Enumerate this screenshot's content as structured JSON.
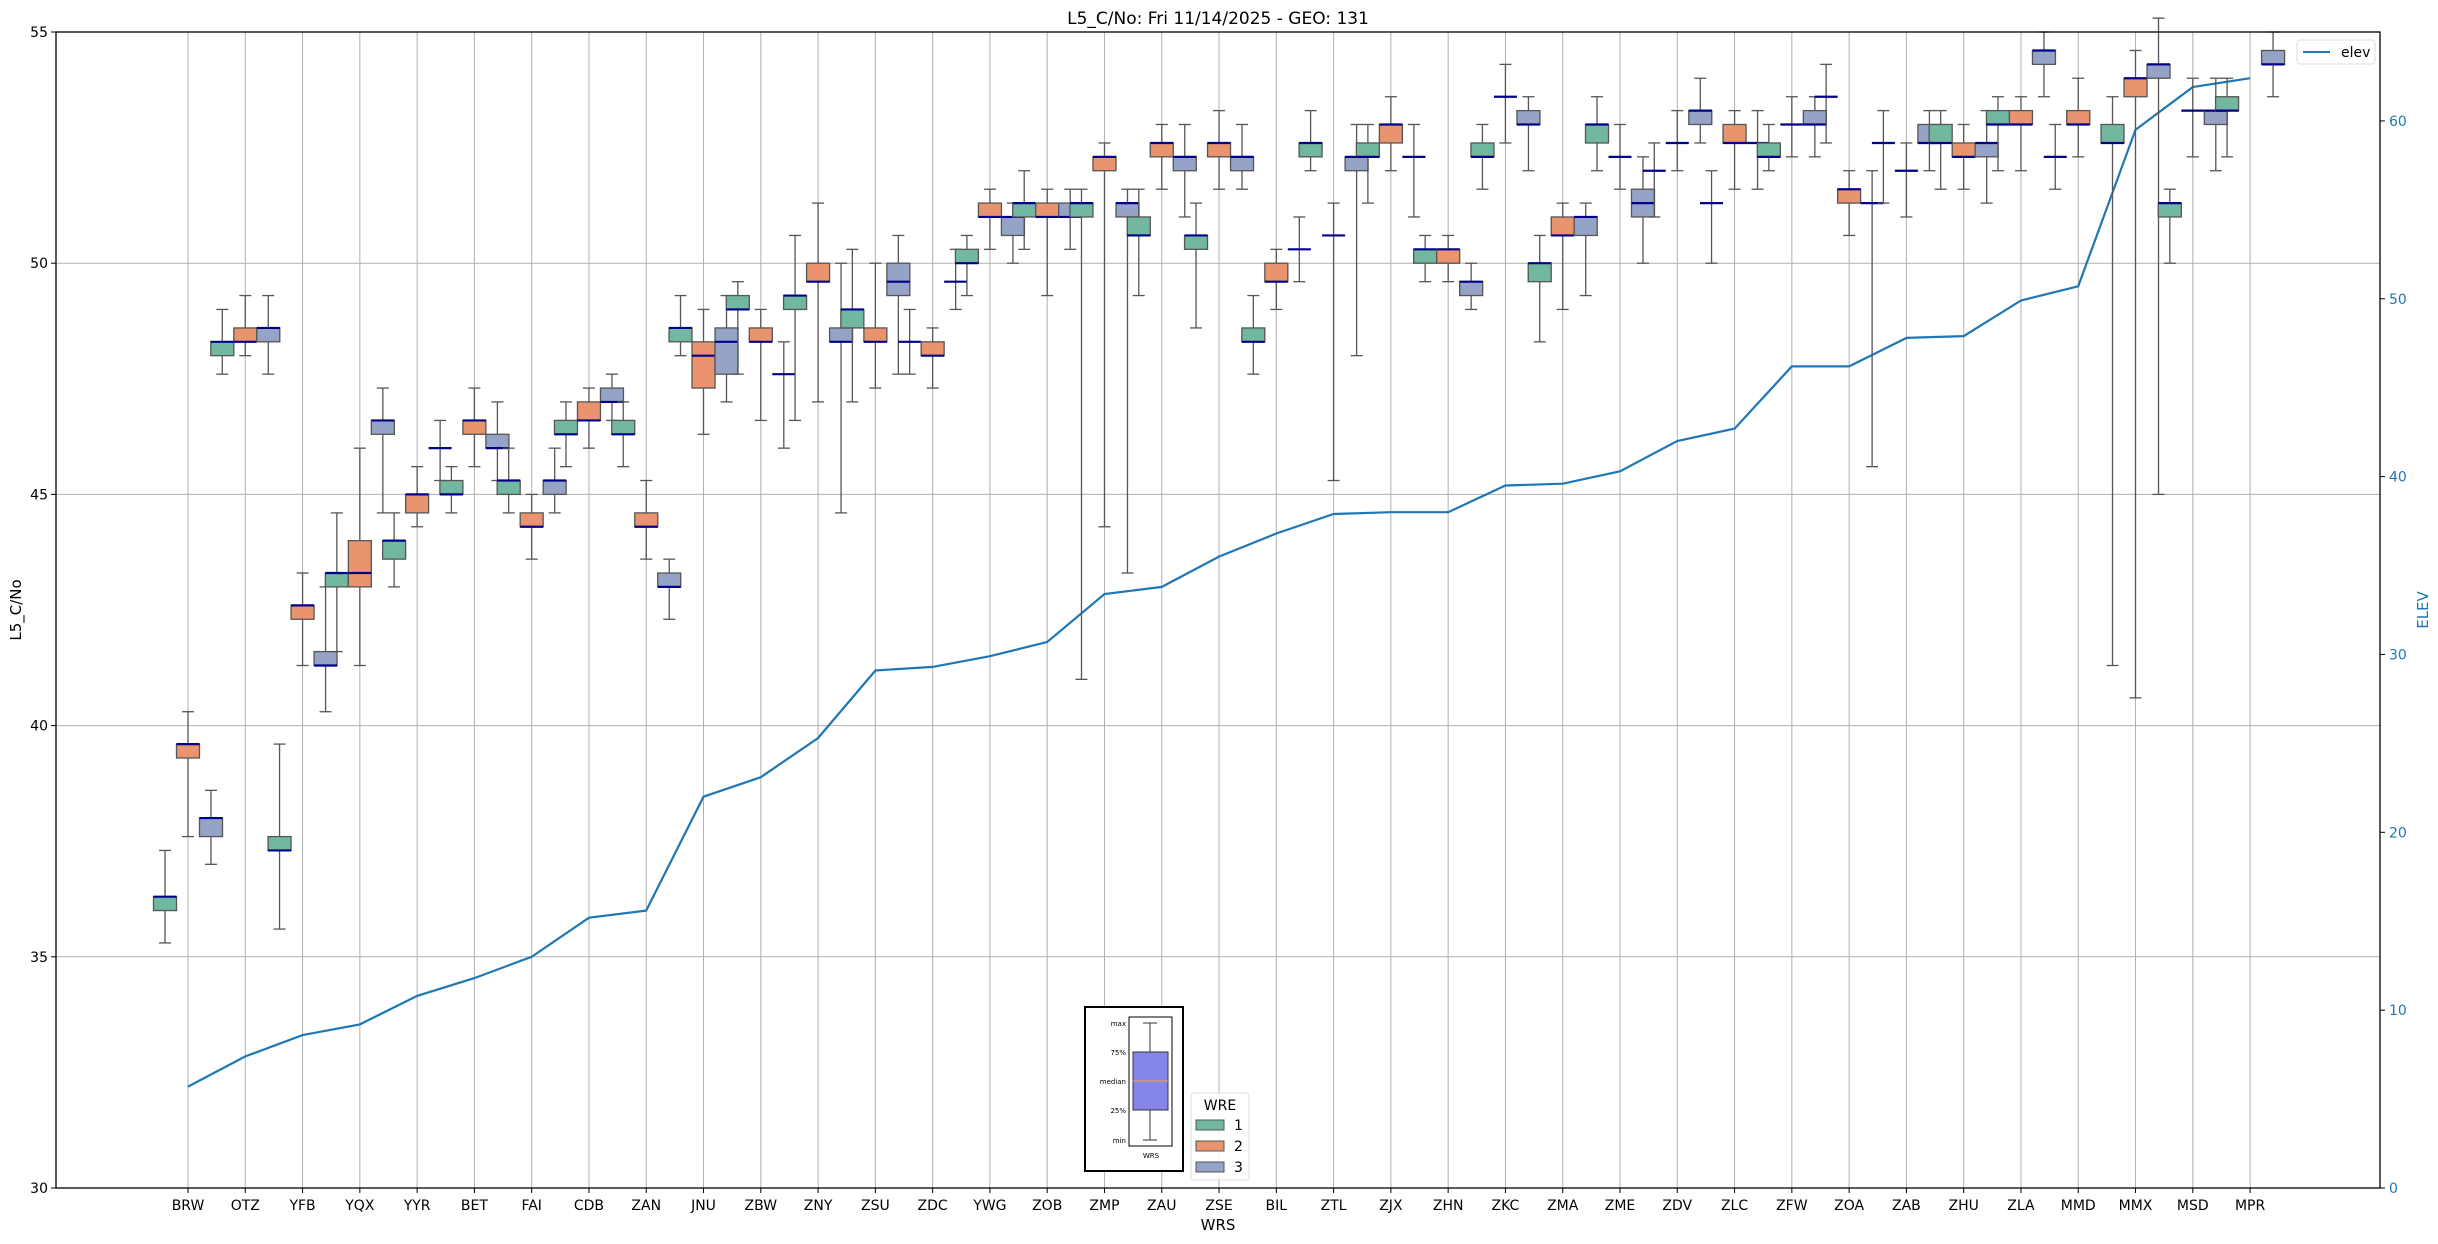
{
  "chart_data": {
    "type": "box",
    "title": "L5_C/No: Fri 11/14/2025 - GEO: 131",
    "xlabel": "WRS",
    "ylabel": "L5_C/No",
    "y2label": "ELEV",
    "ylim": [
      30,
      55
    ],
    "y2lim": [
      0,
      65
    ],
    "yticks": [
      30,
      35,
      40,
      45,
      50,
      55
    ],
    "y2ticks": [
      0,
      10,
      20,
      30,
      40,
      50,
      60
    ],
    "grid": true,
    "group_legend": {
      "title": "WRE",
      "entries": [
        "1",
        "2",
        "3"
      ],
      "placement": "bottom-center"
    },
    "line_legend": {
      "entries": [
        "elev"
      ],
      "placement": "top-right"
    },
    "colors": {
      "g1": "#72b8a0",
      "g2": "#e9946f",
      "g3": "#95a3c6",
      "median": "#00008b",
      "whisker": "#555555",
      "elev": "#1f77b4",
      "grid": "#b0b0b0"
    },
    "box_format": [
      "min",
      "q1",
      "median",
      "q3",
      "max"
    ],
    "stations": [
      {
        "name": "BRW",
        "elev": 5.7,
        "groups": [
          [
            35.3,
            36.0,
            36.3,
            36.3,
            37.3
          ],
          [
            37.6,
            39.3,
            39.6,
            39.6,
            40.3
          ],
          [
            37.0,
            37.6,
            38.0,
            38.0,
            38.6
          ]
        ]
      },
      {
        "name": "OTZ",
        "elev": 7.4,
        "groups": [
          [
            47.6,
            48.0,
            48.3,
            48.3,
            49.0
          ],
          [
            48.0,
            48.3,
            48.3,
            48.6,
            49.3
          ],
          [
            47.6,
            48.3,
            48.6,
            48.6,
            49.3
          ]
        ]
      },
      {
        "name": "YFB",
        "elev": 8.6,
        "groups": [
          [
            35.6,
            37.3,
            37.3,
            37.6,
            39.6
          ],
          [
            41.3,
            42.3,
            42.6,
            42.6,
            43.3
          ],
          [
            40.3,
            41.3,
            41.3,
            41.6,
            43.0
          ]
        ]
      },
      {
        "name": "YQX",
        "elev": 9.2,
        "groups": [
          [
            41.6,
            43.0,
            43.3,
            43.3,
            44.6
          ],
          [
            41.3,
            43.0,
            43.3,
            44.0,
            46.0
          ],
          [
            44.6,
            46.3,
            46.6,
            46.6,
            47.3
          ]
        ]
      },
      {
        "name": "YYR",
        "elev": 10.8,
        "groups": [
          [
            43.0,
            43.6,
            44.0,
            44.0,
            44.6
          ],
          [
            44.3,
            44.6,
            45.0,
            45.0,
            45.6
          ],
          [
            45.3,
            46.0,
            46.0,
            46.0,
            46.6
          ]
        ]
      },
      {
        "name": "BET",
        "elev": 11.8,
        "groups": [
          [
            44.6,
            45.0,
            45.0,
            45.3,
            45.6
          ],
          [
            45.6,
            46.3,
            46.6,
            46.6,
            47.3
          ],
          [
            45.3,
            46.0,
            46.0,
            46.3,
            47.0
          ]
        ]
      },
      {
        "name": "FAI",
        "elev": 13.0,
        "groups": [
          [
            44.6,
            45.0,
            45.3,
            45.3,
            46.0
          ],
          [
            43.6,
            44.3,
            44.3,
            44.6,
            45.0
          ],
          [
            44.6,
            45.0,
            45.3,
            45.3,
            46.0
          ]
        ]
      },
      {
        "name": "CDB",
        "elev": 15.2,
        "groups": [
          [
            45.6,
            46.3,
            46.3,
            46.6,
            47.0
          ],
          [
            46.0,
            46.6,
            46.6,
            47.0,
            47.3
          ],
          [
            46.6,
            47.0,
            47.0,
            47.3,
            47.6
          ]
        ]
      },
      {
        "name": "ZAN",
        "elev": 15.6,
        "groups": [
          [
            45.6,
            46.3,
            46.3,
            46.6,
            47.0
          ],
          [
            43.6,
            44.3,
            44.3,
            44.6,
            45.3
          ],
          [
            42.3,
            43.0,
            43.0,
            43.3,
            43.6
          ]
        ]
      },
      {
        "name": "JNU",
        "elev": 22.0,
        "groups": [
          [
            48.0,
            48.3,
            48.6,
            48.6,
            49.3
          ],
          [
            46.3,
            47.3,
            48.0,
            48.3,
            49.0
          ],
          [
            47.0,
            47.6,
            48.3,
            48.6,
            49.3
          ]
        ]
      },
      {
        "name": "ZBW",
        "elev": 23.1,
        "groups": [
          [
            47.6,
            49.0,
            49.0,
            49.3,
            49.6
          ],
          [
            46.6,
            48.3,
            48.3,
            48.6,
            49.0
          ],
          [
            46.0,
            47.6,
            47.6,
            47.6,
            48.3
          ]
        ]
      },
      {
        "name": "ZNY",
        "elev": 25.3,
        "groups": [
          [
            46.6,
            49.0,
            49.3,
            49.3,
            50.6
          ],
          [
            47.0,
            49.6,
            49.6,
            50.0,
            51.3
          ],
          [
            44.6,
            48.3,
            48.3,
            48.6,
            50.0
          ]
        ]
      },
      {
        "name": "ZSU",
        "elev": 29.1,
        "groups": [
          [
            47.0,
            48.6,
            49.0,
            49.0,
            50.3
          ],
          [
            47.3,
            48.3,
            48.3,
            48.6,
            50.0
          ],
          [
            47.6,
            49.3,
            49.6,
            50.0,
            50.6
          ]
        ]
      },
      {
        "name": "ZDC",
        "elev": 29.3,
        "groups": [
          [
            47.6,
            48.3,
            48.3,
            48.3,
            49.0
          ],
          [
            47.3,
            48.0,
            48.0,
            48.3,
            48.6
          ],
          [
            49.0,
            49.6,
            49.6,
            49.6,
            50.3
          ]
        ]
      },
      {
        "name": "YWG",
        "elev": 29.9,
        "groups": [
          [
            49.3,
            50.0,
            50.0,
            50.3,
            50.6
          ],
          [
            50.3,
            51.0,
            51.0,
            51.3,
            51.6
          ],
          [
            50.0,
            50.6,
            51.0,
            51.0,
            51.3
          ]
        ]
      },
      {
        "name": "ZOB",
        "elev": 30.7,
        "groups": [
          [
            50.3,
            51.0,
            51.3,
            51.3,
            52.0
          ],
          [
            49.3,
            51.0,
            51.0,
            51.3,
            51.6
          ],
          [
            50.3,
            51.0,
            51.0,
            51.3,
            51.6
          ]
        ]
      },
      {
        "name": "ZMP",
        "elev": 33.4,
        "groups": [
          [
            41.0,
            51.0,
            51.3,
            51.3,
            51.6
          ],
          [
            44.3,
            52.0,
            52.3,
            52.3,
            52.6
          ],
          [
            43.3,
            51.0,
            51.3,
            51.3,
            51.6
          ]
        ]
      },
      {
        "name": "ZAU",
        "elev": 33.8,
        "groups": [
          [
            49.3,
            50.6,
            50.6,
            51.0,
            51.6
          ],
          [
            51.6,
            52.3,
            52.6,
            52.6,
            53.0
          ],
          [
            51.0,
            52.0,
            52.3,
            52.3,
            53.0
          ]
        ]
      },
      {
        "name": "ZSE",
        "elev": 35.5,
        "groups": [
          [
            48.6,
            50.3,
            50.6,
            50.6,
            51.3
          ],
          [
            51.6,
            52.3,
            52.6,
            52.6,
            53.3
          ],
          [
            51.6,
            52.0,
            52.3,
            52.3,
            53.0
          ]
        ]
      },
      {
        "name": "BIL",
        "elev": 36.8,
        "groups": [
          [
            47.6,
            48.3,
            48.3,
            48.6,
            49.3
          ],
          [
            49.0,
            49.6,
            49.6,
            50.0,
            50.3
          ],
          [
            49.6,
            50.3,
            50.3,
            50.3,
            51.0
          ]
        ]
      },
      {
        "name": "ZTL",
        "elev": 37.9,
        "groups": [
          [
            52.0,
            52.3,
            52.6,
            52.6,
            53.3
          ],
          [
            45.3,
            50.6,
            50.6,
            50.6,
            51.3
          ],
          [
            48.0,
            52.0,
            52.3,
            52.3,
            53.0
          ]
        ]
      },
      {
        "name": "ZJX",
        "elev": 38.0,
        "groups": [
          [
            51.3,
            52.3,
            52.3,
            52.6,
            53.0
          ],
          [
            52.0,
            52.6,
            53.0,
            53.0,
            53.6
          ],
          [
            51.0,
            52.3,
            52.3,
            52.3,
            53.0
          ]
        ]
      },
      {
        "name": "ZHN",
        "elev": 38.0,
        "groups": [
          [
            49.6,
            50.0,
            50.3,
            50.3,
            50.6
          ],
          [
            49.6,
            50.0,
            50.3,
            50.3,
            50.6
          ],
          [
            49.0,
            49.3,
            49.6,
            49.6,
            50.0
          ]
        ]
      },
      {
        "name": "ZKC",
        "elev": 39.5,
        "groups": [
          [
            51.6,
            52.3,
            52.3,
            52.6,
            53.0
          ],
          [
            52.6,
            53.6,
            53.6,
            53.6,
            54.3
          ],
          [
            52.0,
            53.0,
            53.0,
            53.3,
            53.6
          ]
        ]
      },
      {
        "name": "ZMA",
        "elev": 39.6,
        "groups": [
          [
            48.3,
            49.6,
            50.0,
            50.0,
            50.6
          ],
          [
            49.0,
            50.6,
            50.6,
            51.0,
            51.3
          ],
          [
            49.3,
            50.6,
            51.0,
            51.0,
            51.3
          ]
        ]
      },
      {
        "name": "ZME",
        "elev": 40.3,
        "groups": [
          [
            52.0,
            52.6,
            53.0,
            53.0,
            53.6
          ],
          [
            51.6,
            52.3,
            52.3,
            52.3,
            53.0
          ],
          [
            50.0,
            51.0,
            51.3,
            51.6,
            52.3
          ]
        ]
      },
      {
        "name": "ZDV",
        "elev": 42.0,
        "groups": [
          [
            51.0,
            52.0,
            52.0,
            52.0,
            52.6
          ],
          [
            52.0,
            52.6,
            52.6,
            52.6,
            53.3
          ],
          [
            52.6,
            53.0,
            53.3,
            53.3,
            54.0
          ]
        ]
      },
      {
        "name": "ZLC",
        "elev": 42.7,
        "groups": [
          [
            50.0,
            51.3,
            51.3,
            51.3,
            52.0
          ],
          [
            51.6,
            52.6,
            52.6,
            53.0,
            53.3
          ],
          [
            51.6,
            52.6,
            52.6,
            52.6,
            53.3
          ]
        ]
      },
      {
        "name": "ZFW",
        "elev": 46.2,
        "groups": [
          [
            52.0,
            52.3,
            52.3,
            52.6,
            53.0
          ],
          [
            52.3,
            53.0,
            53.0,
            53.0,
            53.6
          ],
          [
            52.3,
            53.0,
            53.0,
            53.3,
            53.6
          ]
        ]
      },
      {
        "name": "ZOA",
        "elev": 46.2,
        "groups": [
          [
            52.6,
            53.6,
            53.6,
            53.6,
            54.3
          ],
          [
            50.6,
            51.3,
            51.6,
            51.6,
            52.0
          ],
          [
            45.6,
            51.3,
            51.3,
            51.3,
            52.0
          ]
        ]
      },
      {
        "name": "ZAB",
        "elev": 47.8,
        "groups": [
          [
            51.3,
            52.6,
            52.6,
            52.6,
            53.3
          ],
          [
            51.0,
            52.0,
            52.0,
            52.0,
            52.6
          ],
          [
            52.0,
            52.6,
            52.6,
            53.0,
            53.3
          ]
        ]
      },
      {
        "name": "ZHU",
        "elev": 47.9,
        "groups": [
          [
            51.6,
            52.6,
            52.6,
            53.0,
            53.3
          ],
          [
            51.6,
            52.3,
            52.3,
            52.6,
            53.0
          ],
          [
            51.3,
            52.3,
            52.6,
            52.6,
            53.3
          ]
        ]
      },
      {
        "name": "ZLA",
        "elev": 49.9,
        "groups": [
          [
            52.0,
            53.0,
            53.0,
            53.3,
            53.6
          ],
          [
            52.0,
            53.0,
            53.0,
            53.3,
            53.6
          ],
          [
            53.6,
            54.3,
            54.6,
            54.6,
            55.0
          ]
        ]
      },
      {
        "name": "MMD",
        "elev": 50.7,
        "groups": [
          [
            51.6,
            52.3,
            52.3,
            52.3,
            53.0
          ],
          [
            52.3,
            53.0,
            53.0,
            53.3,
            54.0
          ],
          null
        ]
      },
      {
        "name": "MMX",
        "elev": 59.5,
        "groups": [
          [
            41.3,
            52.6,
            52.6,
            53.0,
            53.6
          ],
          [
            40.6,
            53.6,
            54.0,
            54.0,
            54.6
          ],
          [
            45.0,
            54.0,
            54.3,
            54.3,
            55.3
          ]
        ]
      },
      {
        "name": "MSD",
        "elev": 61.9,
        "groups": [
          [
            50.0,
            51.0,
            51.3,
            51.3,
            51.6
          ],
          [
            52.3,
            53.3,
            53.3,
            53.3,
            54.0
          ],
          [
            52.0,
            53.0,
            53.3,
            53.3,
            54.0
          ]
        ]
      },
      {
        "name": "MPR",
        "elev": 62.4,
        "groups": [
          [
            52.3,
            53.3,
            53.3,
            53.6,
            54.0
          ],
          null,
          [
            53.6,
            54.3,
            54.3,
            54.6,
            55.0
          ]
        ]
      }
    ]
  },
  "inset": {
    "labels": [
      "max",
      "75%",
      "median",
      "25%",
      "min"
    ],
    "xlabel": "WRS",
    "box_color": "#8585e8",
    "median_color": "#ff9f40"
  }
}
